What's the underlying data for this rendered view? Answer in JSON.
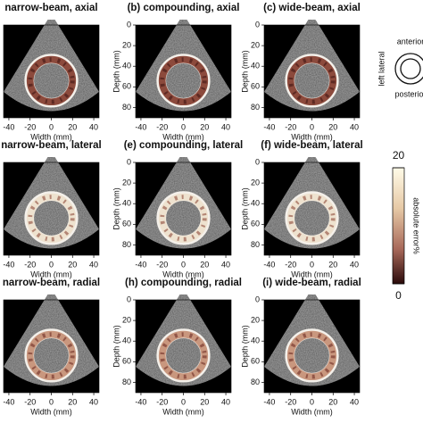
{
  "panels": [
    {
      "title": "narrow-beam, axial",
      "xlabel": "Width (mm)"
    },
    {
      "title": "(b) compounding, axial",
      "xlabel": "Width (mm)",
      "ylabel": "Depth (mm)"
    },
    {
      "title": "(c) wide-beam, axial",
      "xlabel": "Width (mm)",
      "ylabel": "Depth (mm)"
    },
    {
      "title": "narrow-beam, lateral",
      "xlabel": "Width (mm)"
    },
    {
      "title": "(e) compounding, lateral",
      "xlabel": "Width (mm)",
      "ylabel": "Depth (mm)"
    },
    {
      "title": "(f) wide-beam, lateral",
      "xlabel": "Width (mm)",
      "ylabel": "Depth (mm)"
    },
    {
      "title": "narrow-beam, radial",
      "xlabel": "Width (mm)"
    },
    {
      "title": "(h) compounding, radial",
      "xlabel": "Width (mm)",
      "ylabel": "Depth (mm)"
    },
    {
      "title": "(i) wide-beam, radial",
      "xlabel": "Width (mm)",
      "ylabel": "Depth (mm)"
    }
  ],
  "axes": {
    "xlim": [
      -45,
      45
    ],
    "ylim": [
      0,
      90
    ],
    "xticks": [
      -40,
      -20,
      0,
      20,
      40
    ],
    "yticks": [
      0,
      20,
      40,
      60,
      80
    ]
  },
  "colorbar": {
    "label": "absolute error%",
    "lim": [
      0,
      20
    ],
    "ticks": [
      0,
      20
    ]
  },
  "orientation": {
    "top": "anterior",
    "bottom": "posterior",
    "left": "left lateral"
  }
}
